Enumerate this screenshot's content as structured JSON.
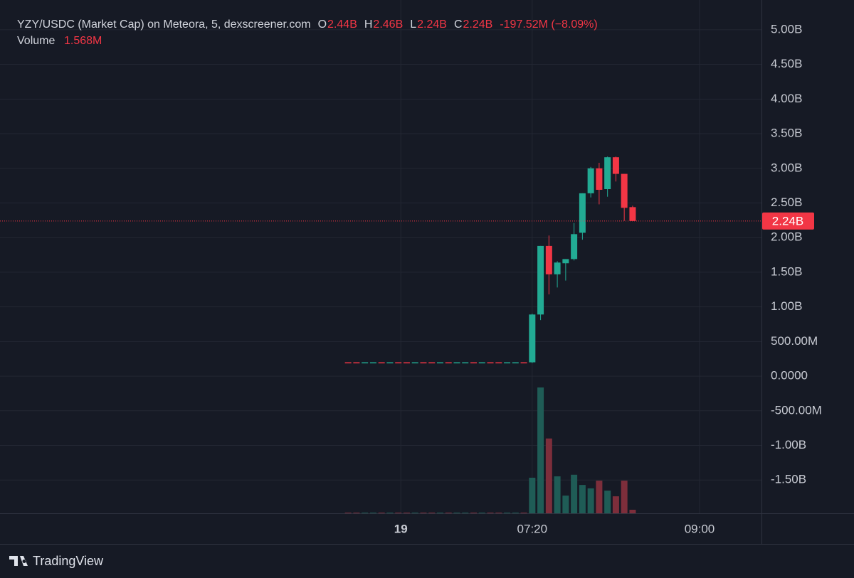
{
  "chart_data": {
    "type": "candlestick",
    "title": "YZY/USDC (Market Cap) on Meteora, 5, dexscreener.com",
    "legend": {
      "o_label": "O",
      "open": "2.44B",
      "h_label": "H",
      "high": "2.46B",
      "l_label": "L",
      "low": "2.24B",
      "c_label": "C",
      "close": "2.24B",
      "change": "-197.52M (−8.09%)",
      "volume_label": "Volume",
      "volume": "1.568M"
    },
    "up_color": "#22ab94",
    "down_color": "#f23645",
    "volume_up_color": "#1f5c56",
    "volume_down_color": "#7d2e3b",
    "open": [
      0.2,
      0.2,
      0.199,
      0.199,
      0.2,
      0.199,
      0.2,
      0.2,
      0.199,
      0.2,
      0.2,
      0.199,
      0.2,
      0.199,
      0.199,
      0.2,
      0.199,
      0.2,
      0.2,
      0.199,
      0.199,
      0.2,
      0.2,
      0.89,
      1.88,
      1.47,
      1.63,
      1.69,
      2.07,
      2.64,
      3.0,
      2.7,
      3.16,
      2.92,
      2.44
    ],
    "high": [
      0.2,
      0.2,
      0.2,
      0.2,
      0.2,
      0.2,
      0.2,
      0.2,
      0.2,
      0.2,
      0.2,
      0.2,
      0.2,
      0.2,
      0.2,
      0.2,
      0.2,
      0.2,
      0.2,
      0.2,
      0.2,
      0.2,
      0.9,
      1.88,
      2.03,
      1.66,
      1.69,
      2.21,
      2.64,
      3.02,
      3.08,
      3.17,
      3.17,
      2.92,
      2.46
    ],
    "low": [
      0.199,
      0.199,
      0.199,
      0.199,
      0.199,
      0.199,
      0.199,
      0.199,
      0.199,
      0.199,
      0.199,
      0.199,
      0.199,
      0.199,
      0.199,
      0.199,
      0.199,
      0.199,
      0.199,
      0.199,
      0.199,
      0.199,
      0.19,
      0.81,
      1.18,
      1.28,
      1.38,
      1.67,
      1.97,
      2.58,
      2.48,
      2.59,
      2.81,
      2.24,
      2.24
    ],
    "close": [
      0.199,
      0.199,
      0.2,
      0.2,
      0.199,
      0.2,
      0.199,
      0.199,
      0.2,
      0.199,
      0.199,
      0.2,
      0.199,
      0.2,
      0.2,
      0.199,
      0.2,
      0.199,
      0.199,
      0.2,
      0.2,
      0.199,
      0.89,
      1.88,
      1.47,
      1.64,
      1.69,
      2.05,
      2.64,
      3.0,
      2.69,
      3.16,
      2.92,
      2.43,
      2.24
    ],
    "volume": [
      0.3,
      0.3,
      0.3,
      0.3,
      0.3,
      0.3,
      0.3,
      0.3,
      0.3,
      0.3,
      0.3,
      0.3,
      0.3,
      0.3,
      0.3,
      0.3,
      0.3,
      0.3,
      0.3,
      0.3,
      0.3,
      0.3,
      15.7,
      55.5,
      33,
      16.3,
      7.8,
      17,
      12.5,
      11,
      14.4,
      10,
      7.5,
      14.4,
      1.568
    ],
    "vlim": [
      0,
      55.5
    ],
    "xlim": [
      -41.6,
      49.4
    ],
    "xticks": [
      {
        "value": 6.3,
        "label": "19"
      },
      {
        "value": 22,
        "label": "07:20"
      },
      {
        "value": 42,
        "label": "09:00"
      }
    ],
    "ylim": [
      -1.98,
      5.43
    ],
    "yticks": [
      {
        "value": 5,
        "label": "5.00B"
      },
      {
        "value": 4.5,
        "label": "4.50B"
      },
      {
        "value": 4,
        "label": "4.00B"
      },
      {
        "value": 3.5,
        "label": "3.50B"
      },
      {
        "value": 3,
        "label": "3.00B"
      },
      {
        "value": 2.5,
        "label": "2.50B"
      },
      {
        "value": 2,
        "label": "2.00B"
      },
      {
        "value": 1.5,
        "label": "1.50B"
      },
      {
        "value": 1,
        "label": "1.00B"
      },
      {
        "value": 0.5,
        "label": "500.00M"
      },
      {
        "value": 0,
        "label": "0.0000"
      },
      {
        "value": -0.5,
        "label": "-500.00M"
      },
      {
        "value": -1,
        "label": "-1.00B"
      },
      {
        "value": -1.5,
        "label": "-1.50B"
      }
    ],
    "last_price": {
      "value": 2.24,
      "label": "2.24B"
    },
    "grid": true,
    "brand": "TradingView"
  }
}
